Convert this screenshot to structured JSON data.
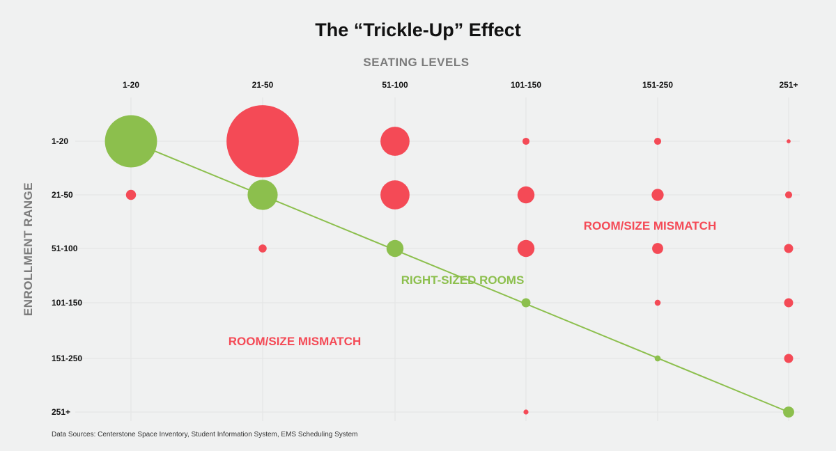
{
  "title": "The “Trickle-Up” Effect",
  "source_note": "Data Sources: Centerstone Space Inventory, Student Information System, EMS Scheduling System",
  "colors": {
    "background": "#f0f1f1",
    "mismatch": "#f44a56",
    "right_sized": "#8cbf4d",
    "axis_title": "#7b7b7b",
    "grid": "#e2e4e4"
  },
  "chart_data": {
    "type": "scatter",
    "title": "The “Trickle-Up” Effect",
    "xlabel": "SEATING LEVELS",
    "ylabel": "ENROLLMENT RANGE",
    "x_categories": [
      "1-20",
      "21-50",
      "51-100",
      "101-150",
      "151-250",
      "251+"
    ],
    "y_categories": [
      "1-20",
      "21-50",
      "51-100",
      "101-150",
      "151-250",
      "251+"
    ],
    "size_encoding": "bubble area = relative number of sections",
    "grid": true,
    "series": [
      {
        "name": "RIGHT-SIZED ROOMS",
        "color": "#8cbf4d",
        "points": [
          {
            "x": "1-20",
            "y": "1-20",
            "size": 52
          },
          {
            "x": "21-50",
            "y": "21-50",
            "size": 30
          },
          {
            "x": "51-100",
            "y": "51-100",
            "size": 17
          },
          {
            "x": "101-150",
            "y": "101-150",
            "size": 9
          },
          {
            "x": "151-250",
            "y": "151-250",
            "size": 6
          },
          {
            "x": "251+",
            "y": "251+",
            "size": 11
          }
        ]
      },
      {
        "name": "ROOM/SIZE MISMATCH",
        "color": "#f44a56",
        "points": [
          {
            "x": "21-50",
            "y": "1-20",
            "size": 72
          },
          {
            "x": "51-100",
            "y": "1-20",
            "size": 29
          },
          {
            "x": "101-150",
            "y": "1-20",
            "size": 7
          },
          {
            "x": "151-250",
            "y": "1-20",
            "size": 7
          },
          {
            "x": "251+",
            "y": "1-20",
            "size": 4
          },
          {
            "x": "1-20",
            "y": "21-50",
            "size": 10
          },
          {
            "x": "51-100",
            "y": "21-50",
            "size": 29
          },
          {
            "x": "101-150",
            "y": "21-50",
            "size": 17
          },
          {
            "x": "151-250",
            "y": "21-50",
            "size": 12
          },
          {
            "x": "251+",
            "y": "21-50",
            "size": 7
          },
          {
            "x": "21-50",
            "y": "51-100",
            "size": 8
          },
          {
            "x": "101-150",
            "y": "51-100",
            "size": 17
          },
          {
            "x": "151-250",
            "y": "51-100",
            "size": 11
          },
          {
            "x": "251+",
            "y": "51-100",
            "size": 9
          },
          {
            "x": "151-250",
            "y": "101-150",
            "size": 6
          },
          {
            "x": "251+",
            "y": "101-150",
            "size": 9
          },
          {
            "x": "251+",
            "y": "151-250",
            "size": 9
          },
          {
            "x": "101-150",
            "y": "251+",
            "size": 5
          }
        ]
      }
    ],
    "trend_line": {
      "from": {
        "x": "1-20",
        "y": "1-20"
      },
      "to": {
        "x": "251+",
        "y": "251+"
      }
    },
    "annotations": [
      {
        "text": "RIGHT-SIZED ROOMS",
        "color": "#8cbf4d",
        "near": {
          "x": "51-100",
          "y": "51-100"
        }
      },
      {
        "text": "ROOM/SIZE MISMATCH",
        "color": "#f44a56",
        "near": {
          "x": "151-250",
          "y": "21-50"
        }
      },
      {
        "text": "ROOM/SIZE MISMATCH",
        "color": "#f44a56",
        "near": {
          "x": "21-50",
          "y": "101-150"
        }
      }
    ]
  }
}
